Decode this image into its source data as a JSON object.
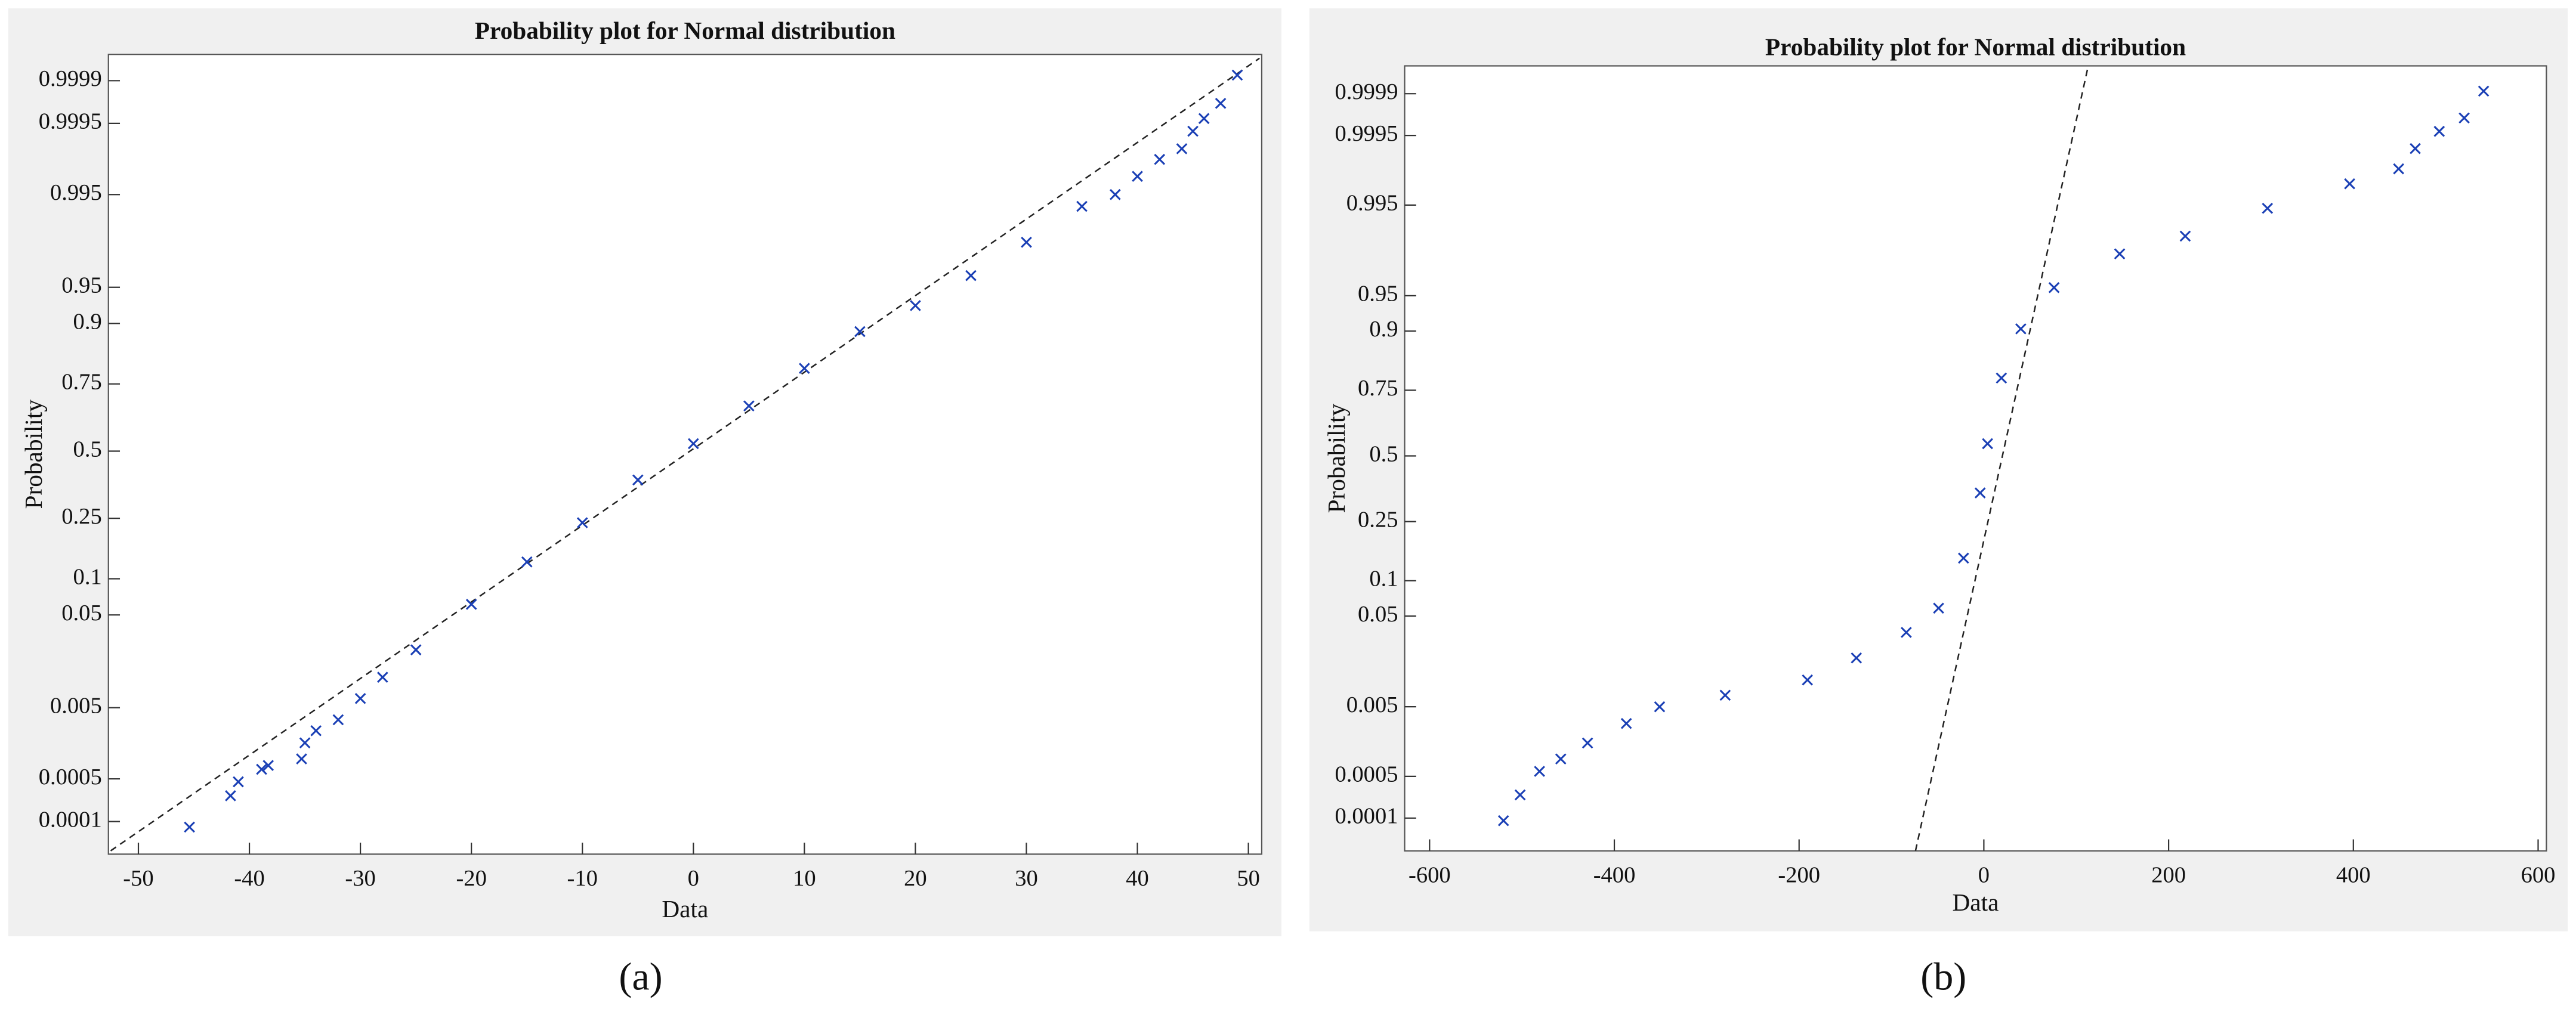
{
  "chart_data": [
    {
      "type": "scatter",
      "title": "Probability plot for Normal distribution",
      "xlabel": "Data",
      "ylabel": "Probability",
      "panel_label": "(a)",
      "yscale": "normal-probability",
      "marker": "x",
      "color": "#1a3fb5",
      "x": [
        -45.4,
        -41.7,
        -41,
        -38.9,
        -38.3,
        -35.3,
        -35,
        -34,
        -32,
        -30,
        -28,
        -25,
        -20,
        -15,
        -10,
        -5,
        0,
        5,
        10,
        15,
        20,
        25,
        30,
        35,
        38,
        40,
        42,
        44,
        45,
        46,
        47.5,
        49
      ],
      "y": [
        8e-05,
        0.00027,
        0.00045,
        0.0007,
        0.0008,
        0.001,
        0.0017,
        0.0025,
        0.0035,
        0.0065,
        0.0116,
        0.023,
        0.062,
        0.133,
        0.236,
        0.386,
        0.53,
        0.675,
        0.797,
        0.885,
        0.928,
        0.961,
        0.982,
        0.993,
        0.995,
        0.9971,
        0.9983,
        0.9988,
        0.99934,
        0.99958,
        0.99976,
        0.99992
      ],
      "reference_line": {
        "x": [
          -52.5,
          51
        ],
        "y": [
          3e-05,
          0.99996
        ]
      },
      "xlim": [
        -52.7,
        51.2
      ],
      "ylim": [
        2.6e-05,
        0.999966
      ],
      "xticks": [
        -50,
        -40,
        -30,
        -20,
        -10,
        0,
        10,
        20,
        30,
        40,
        50
      ],
      "yticks": [
        0.0001,
        0.0005,
        0.005,
        0.05,
        0.1,
        0.25,
        0.5,
        0.75,
        0.9,
        0.95,
        0.995,
        0.9995,
        0.9999
      ]
    },
    {
      "type": "scatter",
      "title": "Probability plot for Normal distribution",
      "xlabel": "Data",
      "ylabel": "Probability",
      "panel_label": "(b)",
      "yscale": "normal-probability",
      "marker": "x",
      "color": "#1a3fb5",
      "x": [
        -520,
        -502,
        -481,
        -458,
        -429,
        -387,
        -351,
        -280,
        -191,
        -138,
        -84,
        -49,
        -22,
        -4,
        4,
        19,
        40,
        76,
        147,
        218,
        307,
        396,
        449,
        467,
        493,
        520,
        541
      ],
      "y": [
        9e-05,
        0.00025,
        0.0006,
        0.00093,
        0.0016,
        0.003,
        0.005,
        0.007,
        0.0107,
        0.019,
        0.035,
        0.059,
        0.147,
        0.352,
        0.55,
        0.788,
        0.904,
        0.958,
        0.981,
        0.988,
        0.9945,
        0.9974,
        0.9984,
        0.9992,
        0.99957,
        0.99974,
        0.99991
      ],
      "reference_line": {
        "x": [
          -74,
          113
        ],
        "y": [
          2.5e-05,
          0.999969
        ]
      },
      "xlim": [
        -627,
        609
      ],
      "ylim": [
        2.5e-05,
        0.999969
      ],
      "xticks": [
        -600,
        -400,
        -200,
        0,
        200,
        400,
        600
      ],
      "yticks": [
        0.0001,
        0.0005,
        0.005,
        0.05,
        0.1,
        0.25,
        0.5,
        0.75,
        0.9,
        0.95,
        0.995,
        0.9995,
        0.9999
      ]
    }
  ]
}
